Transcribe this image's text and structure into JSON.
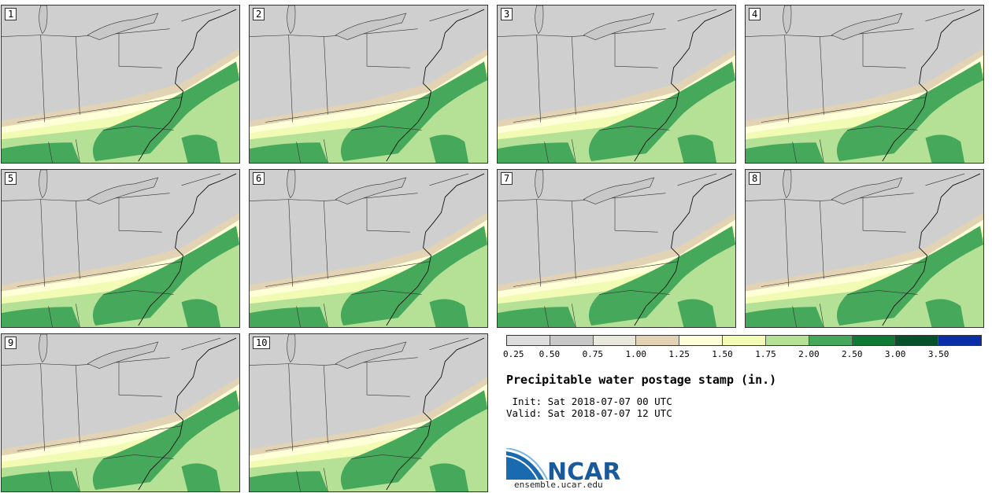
{
  "members": [
    "1",
    "2",
    "3",
    "4",
    "5",
    "6",
    "7",
    "8",
    "9",
    "10"
  ],
  "colorbar": {
    "colors": [
      "#dcdcdc",
      "#c8c8c8",
      "#e8e8dc",
      "#e1d3b4",
      "#ffffd8",
      "#f1fbb4",
      "#b4e196",
      "#46a85a",
      "#0e7a34",
      "#06502a",
      "#0a2ea8"
    ],
    "ticks": [
      "0.25",
      "0.50",
      "0.75",
      "1.00",
      "1.25",
      "1.50",
      "1.75",
      "2.00",
      "2.50",
      "3.00",
      "3.50"
    ]
  },
  "title": "Precipitable water postage stamp (in.)",
  "init_line": " Init: Sat 2018-07-07 00 UTC",
  "valid_line": "Valid: Sat 2018-07-07 12 UTC",
  "logo": {
    "text": "NCAR",
    "url": "ensemble.ucar.edu",
    "brand_color": "#1a5a9a"
  }
}
